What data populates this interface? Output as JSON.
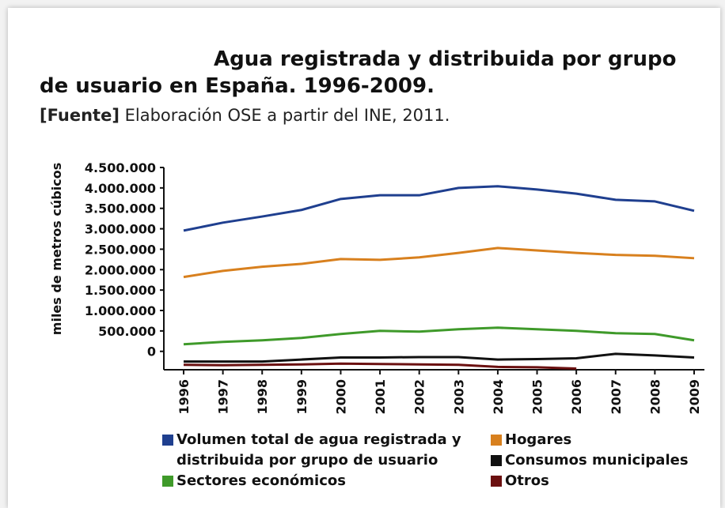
{
  "chart_data": {
    "type": "line",
    "title": "Agua registrada y distribuida por grupo de usuario en España. 1996-2009.",
    "source_label": "[Fuente]",
    "source": "Elaboración OSE a partir del INE, 2011.",
    "y_label": "miles de metros cúbicos",
    "categories": [
      "1996",
      "1997",
      "1998",
      "1999",
      "2000",
      "2001",
      "2002",
      "2003",
      "2004",
      "2005",
      "2006",
      "2007",
      "2008",
      "2009"
    ],
    "ylim": [
      -450000,
      4500000
    ],
    "yticks": [
      0,
      {
        "value": 500000,
        "label": "500.000"
      },
      {
        "value": 1000000,
        "label": "1.000.000"
      },
      {
        "value": 1500000,
        "label": "1.500.000"
      },
      {
        "value": 2000000,
        "label": "2.000.000"
      },
      {
        "value": 2500000,
        "label": "2.500.000"
      },
      {
        "value": 3000000,
        "label": "3.000.000"
      },
      {
        "value": 3500000,
        "label": "3.500.000"
      },
      {
        "value": 4000000,
        "label": "4.000.000"
      },
      {
        "value": 4500000,
        "label": "4.500.000"
      }
    ],
    "series": [
      {
        "name": "Volumen total de agua registrada y distribuida por grupo de usuario",
        "color": "#1f3f8f",
        "values": [
          2955000,
          3150000,
          3300000,
          3460000,
          3730000,
          3820000,
          3820000,
          4000000,
          4040000,
          3960000,
          3860000,
          3710000,
          3670000,
          3440000
        ]
      },
      {
        "name": "Hogares",
        "color": "#d8801e",
        "values": [
          1820000,
          1970000,
          2070000,
          2140000,
          2260000,
          2240000,
          2300000,
          2410000,
          2530000,
          2470000,
          2410000,
          2360000,
          2340000,
          2280000
        ]
      },
      {
        "name": "Sectores económicos",
        "color": "#3f9a2a",
        "values": [
          174000,
          232000,
          270000,
          328000,
          425000,
          502000,
          483000,
          541000,
          579000,
          541000,
          502000,
          444000,
          425000,
          270000
        ]
      },
      {
        "name": "Consumos municipales",
        "color": "#111111",
        "values": [
          -250000,
          -250000,
          -250000,
          -200000,
          -150000,
          -150000,
          -140000,
          -140000,
          -200000,
          -190000,
          -170000,
          -60000,
          -100000,
          -150000
        ]
      },
      {
        "name": "Otros",
        "color": "#6b1010",
        "values": [
          -330000,
          -340000,
          -330000,
          -320000,
          -300000,
          -310000,
          -320000,
          -330000,
          -380000,
          -390000,
          -420000,
          null,
          null,
          null
        ]
      }
    ]
  }
}
